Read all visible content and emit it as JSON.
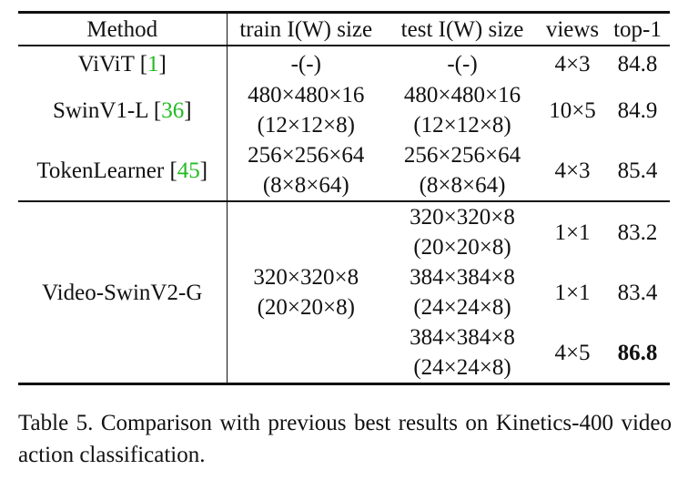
{
  "headers": {
    "method": "Method",
    "train": "train I(W) size",
    "test": "test I(W) size",
    "views": "views",
    "top1": "top-1"
  },
  "rows": [
    {
      "method": "ViViT",
      "ref": "1",
      "train_line1": "-(-)",
      "test_line1": "-(-)",
      "views": "4×3",
      "top1": "84.8"
    },
    {
      "method": "SwinV1-L",
      "ref": "36",
      "train_line1": "480×480×16",
      "train_line2": "(12×12×8)",
      "test_line1": "480×480×16",
      "test_line2": "(12×12×8)",
      "views": "10×5",
      "top1": "84.9"
    },
    {
      "method": "TokenLearner",
      "ref": "45",
      "train_line1": "256×256×64",
      "train_line2": "(8×8×64)",
      "test_line1": "256×256×64",
      "test_line2": "(8×8×64)",
      "views": "4×3",
      "top1": "85.4"
    }
  ],
  "ours": {
    "method": "Video-SwinV2-G",
    "train_line1": "320×320×8",
    "train_line2": "(20×20×8)",
    "subrows": [
      {
        "test_line1": "320×320×8",
        "test_line2": "(20×20×8)",
        "views": "1×1",
        "top1": "83.2"
      },
      {
        "test_line1": "384×384×8",
        "test_line2": "(24×24×8)",
        "views": "1×1",
        "top1": "83.4"
      },
      {
        "test_line1": "384×384×8",
        "test_line2": "(24×24×8)",
        "views": "4×5",
        "top1": "86.8"
      }
    ]
  },
  "caption": "Table 5.  Comparison with previous best results on Kinetics-400 video action classification."
}
